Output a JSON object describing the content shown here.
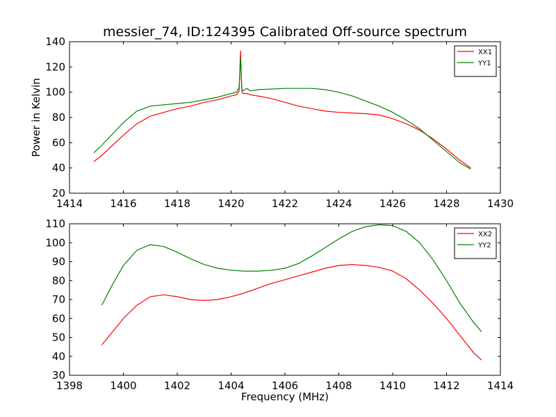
{
  "chart_data": [
    {
      "type": "line",
      "title": "messier_74, ID:124395 Calibrated Off-source spectrum",
      "xlabel": "",
      "ylabel": "Power in Kelvin",
      "xlim": [
        1414,
        1430
      ],
      "ylim": [
        20,
        140
      ],
      "xticks": [
        "1414",
        "1416",
        "1418",
        "1420",
        "1422",
        "1424",
        "1426",
        "1428",
        "1430"
      ],
      "yticks": [
        "20",
        "40",
        "60",
        "80",
        "100",
        "120",
        "140"
      ],
      "legend_position": "top-right",
      "series": [
        {
          "name": "XX1",
          "color": "#ff0000",
          "x": [
            1414.9,
            1415.2,
            1415.6,
            1416.0,
            1416.5,
            1417.0,
            1417.5,
            1418.0,
            1418.5,
            1419.0,
            1419.5,
            1420.0,
            1420.2,
            1420.3,
            1420.35,
            1420.4,
            1420.45,
            1420.5,
            1420.6,
            1420.7,
            1421.0,
            1421.5,
            1422.0,
            1422.5,
            1423.0,
            1423.5,
            1424.0,
            1424.5,
            1425.0,
            1425.5,
            1426.0,
            1426.5,
            1427.0,
            1427.5,
            1428.0,
            1428.5,
            1428.9
          ],
          "y": [
            45,
            50,
            58,
            66,
            75,
            81,
            84,
            87,
            89,
            92,
            94,
            97,
            98,
            101,
            133,
            100,
            99,
            99,
            99,
            98,
            97,
            95,
            92,
            89,
            87,
            85,
            84,
            83.5,
            83,
            82,
            79,
            75,
            70,
            63,
            55,
            46,
            40
          ]
        },
        {
          "name": "YY1",
          "color": "#008000",
          "x": [
            1414.9,
            1415.2,
            1415.6,
            1416.0,
            1416.5,
            1417.0,
            1417.5,
            1418.0,
            1418.5,
            1419.0,
            1419.5,
            1420.0,
            1420.2,
            1420.3,
            1420.35,
            1420.4,
            1420.45,
            1420.5,
            1420.6,
            1420.7,
            1421.0,
            1421.5,
            1422.0,
            1422.5,
            1423.0,
            1423.5,
            1424.0,
            1424.5,
            1425.0,
            1425.5,
            1426.0,
            1426.5,
            1427.0,
            1427.5,
            1428.0,
            1428.5,
            1428.9
          ],
          "y": [
            52,
            58,
            67,
            76,
            85,
            89,
            90,
            91,
            92,
            94,
            96,
            99,
            100,
            104,
            128,
            102,
            101,
            102,
            103,
            101,
            102,
            102.5,
            103,
            103,
            103,
            102,
            100,
            97,
            93,
            89,
            84,
            78,
            71,
            62,
            53,
            44,
            39
          ]
        }
      ]
    },
    {
      "type": "line",
      "title": "",
      "xlabel": "Frequency (MHz)",
      "ylabel": "",
      "xlim": [
        1398,
        1414
      ],
      "ylim": [
        30,
        110
      ],
      "xticks": [
        "1398",
        "1400",
        "1402",
        "1404",
        "1406",
        "1408",
        "1410",
        "1412",
        "1414"
      ],
      "yticks": [
        "30",
        "40",
        "50",
        "60",
        "70",
        "80",
        "90",
        "100",
        "110"
      ],
      "legend_position": "top-right",
      "series": [
        {
          "name": "XX2",
          "color": "#ff0000",
          "x": [
            1399.2,
            1399.6,
            1400.0,
            1400.5,
            1401.0,
            1401.5,
            1402.0,
            1402.5,
            1403.0,
            1403.5,
            1404.0,
            1404.5,
            1405.0,
            1405.5,
            1406.0,
            1406.5,
            1407.0,
            1407.5,
            1408.0,
            1408.5,
            1409.0,
            1409.5,
            1410.0,
            1410.5,
            1411.0,
            1411.5,
            1412.0,
            1412.5,
            1413.0,
            1413.3
          ],
          "y": [
            46,
            53,
            60,
            67,
            71.5,
            72.5,
            71.5,
            70,
            69.5,
            70,
            71.5,
            73.5,
            76,
            78.5,
            80.5,
            82.5,
            84.5,
            86.5,
            88,
            88.5,
            88,
            87,
            85,
            81,
            75,
            68,
            60,
            51,
            42,
            38
          ]
        },
        {
          "name": "YY2",
          "color": "#008000",
          "x": [
            1399.2,
            1399.6,
            1400.0,
            1400.5,
            1401.0,
            1401.5,
            1402.0,
            1402.5,
            1403.0,
            1403.5,
            1404.0,
            1404.5,
            1405.0,
            1405.5,
            1406.0,
            1406.5,
            1407.0,
            1407.5,
            1408.0,
            1408.5,
            1409.0,
            1409.5,
            1410.0,
            1410.5,
            1411.0,
            1411.5,
            1412.0,
            1412.5,
            1413.0,
            1413.3
          ],
          "y": [
            67,
            78,
            88,
            96,
            99,
            98,
            95,
            91.5,
            88.5,
            86.5,
            85.5,
            85,
            85,
            85.5,
            86.5,
            89,
            93,
            97.5,
            102,
            106,
            108.5,
            109.5,
            109,
            106,
            100,
            91,
            80,
            68,
            58,
            53
          ]
        }
      ]
    }
  ]
}
